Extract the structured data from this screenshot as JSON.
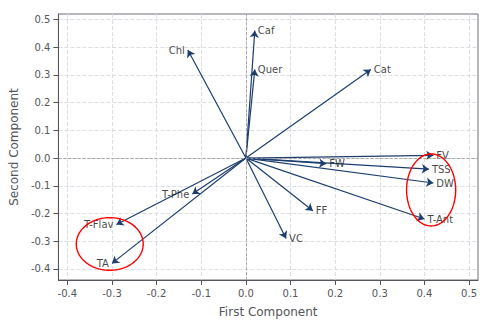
{
  "chart_data": {
    "type": "biplot",
    "xlabel": "First Component",
    "ylabel": "Second Component",
    "color": "#1c3d6e",
    "vectors": [
      {
        "label": "Caf",
        "x": 0.02,
        "y": 0.46
      },
      {
        "label": "Chl",
        "x": -0.13,
        "y": 0.39
      },
      {
        "label": "Quer",
        "x": 0.02,
        "y": 0.32
      },
      {
        "label": "Cat",
        "x": 0.28,
        "y": 0.32
      },
      {
        "label": "FW",
        "x": 0.18,
        "y": -0.02
      },
      {
        "label": "FV",
        "x": 0.42,
        "y": 0.01
      },
      {
        "label": "TSS",
        "x": 0.41,
        "y": -0.04
      },
      {
        "label": "DW",
        "x": 0.42,
        "y": -0.09
      },
      {
        "label": "T-Ant",
        "x": 0.4,
        "y": -0.22
      },
      {
        "label": "FF",
        "x": 0.15,
        "y": -0.19
      },
      {
        "label": "VC",
        "x": 0.09,
        "y": -0.29
      },
      {
        "label": "T-Phe",
        "x": -0.12,
        "y": -0.13
      },
      {
        "label": "T-Flav",
        "x": -0.29,
        "y": -0.24
      },
      {
        "label": "TA",
        "x": -0.3,
        "y": -0.38
      }
    ],
    "ellipses": [
      {
        "cx": -0.305,
        "cy": -0.31,
        "rx": 0.075,
        "ry": 0.095,
        "color": "red"
      },
      {
        "cx": 0.415,
        "cy": -0.115,
        "rx": 0.055,
        "ry": 0.13,
        "color": "red"
      }
    ],
    "xlim": [
      -0.42,
      0.52
    ],
    "ylim": [
      -0.44,
      0.52
    ],
    "xticks": [
      -0.4,
      -0.3,
      -0.2,
      -0.1,
      {
        "value": 0,
        "label": "0.0"
      },
      0.1,
      0.2,
      0.3,
      0.4,
      0.5
    ],
    "yticks": [
      -0.4,
      -0.3,
      -0.2,
      -0.1,
      {
        "value": 0,
        "label": "0.0"
      },
      0.1,
      0.2,
      0.3,
      0.4,
      0.5
    ],
    "grid": true
  }
}
